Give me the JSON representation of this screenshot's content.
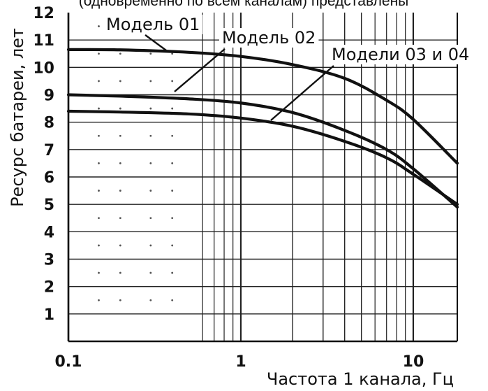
{
  "header_fragment": "(одновременно по всем каналам) представлены",
  "chart_data": {
    "type": "line",
    "title": "",
    "xlabel": "Частота 1 канала, Гц",
    "ylabel": "Ресурс батареи, лет",
    "x_scale": "log",
    "xlim": [
      0.1,
      18
    ],
    "ylim": [
      0,
      12
    ],
    "x_ticks": [
      {
        "value": 0.1,
        "label": "0.1"
      },
      {
        "value": 1,
        "label": "1"
      },
      {
        "value": 10,
        "label": "10"
      }
    ],
    "y_ticks": [
      {
        "value": 1,
        "label": "1"
      },
      {
        "value": 2,
        "label": "2"
      },
      {
        "value": 3,
        "label": "3"
      },
      {
        "value": 4,
        "label": "4"
      },
      {
        "value": 5,
        "label": "5"
      },
      {
        "value": 6,
        "label": "6"
      },
      {
        "value": 7,
        "label": "7"
      },
      {
        "value": 8,
        "label": "8"
      },
      {
        "value": 9,
        "label": "9"
      },
      {
        "value": 10,
        "label": "10"
      },
      {
        "value": 11,
        "label": "11"
      },
      {
        "value": 12,
        "label": "12"
      }
    ],
    "grid": true,
    "series": [
      {
        "name": "Модель 01",
        "color": "#111111",
        "x": [
          0.1,
          0.2,
          0.5,
          1,
          2,
          4,
          7,
          10,
          18
        ],
        "y": [
          10.65,
          10.64,
          10.55,
          10.4,
          10.1,
          9.6,
          8.8,
          8.1,
          6.5
        ]
      },
      {
        "name": "Модель 02",
        "color": "#111111",
        "x": [
          0.1,
          0.2,
          0.5,
          1,
          2,
          4,
          7,
          10,
          18
        ],
        "y": [
          9.0,
          8.95,
          8.85,
          8.7,
          8.35,
          7.7,
          7.0,
          6.3,
          4.9
        ]
      },
      {
        "name": "Модели 03 и 04",
        "color": "#111111",
        "x": [
          0.1,
          0.2,
          0.5,
          1,
          2,
          4,
          7,
          10,
          18
        ],
        "y": [
          8.4,
          8.37,
          8.3,
          8.15,
          7.85,
          7.3,
          6.7,
          6.1,
          5.0
        ]
      }
    ],
    "annotations": [
      {
        "text": "Модель 01",
        "series": 0
      },
      {
        "text": "Модель 02",
        "series": 1
      },
      {
        "text": "Модели 03 и 04",
        "series": 2
      }
    ]
  }
}
